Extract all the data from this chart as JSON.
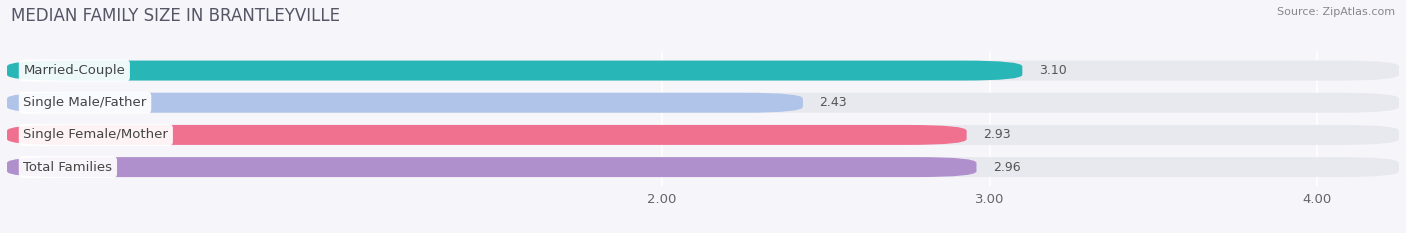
{
  "title": "MEDIAN FAMILY SIZE IN BRANTLEYVILLE",
  "source": "Source: ZipAtlas.com",
  "categories": [
    "Married-Couple",
    "Single Male/Father",
    "Single Female/Mother",
    "Total Families"
  ],
  "values": [
    3.1,
    2.43,
    2.93,
    2.96
  ],
  "bar_colors": [
    "#29b6b6",
    "#afc4e8",
    "#f07090",
    "#b090cc"
  ],
  "xlim": [
    0,
    4.25
  ],
  "xmin": 0,
  "xticks": [
    2.0,
    3.0,
    4.0
  ],
  "xtick_labels": [
    "2.00",
    "3.00",
    "4.00"
  ],
  "bar_height": 0.62,
  "background_color": "#f5f5fa",
  "bar_bg_color": "#e8e8ef",
  "title_fontsize": 12,
  "source_fontsize": 8,
  "label_fontsize": 9.5,
  "value_fontsize": 9
}
